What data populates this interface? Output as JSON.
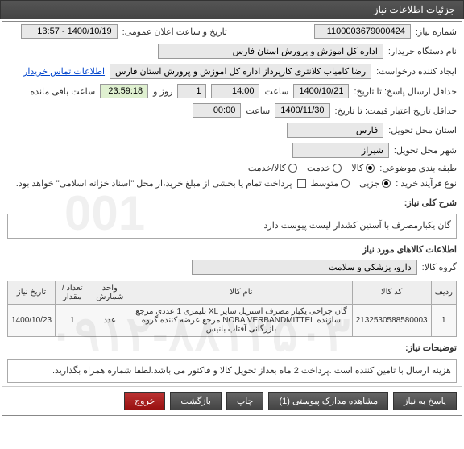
{
  "header": "جزئیات اطلاعات نیاز",
  "labels": {
    "need_no": "شماره نیاز:",
    "announce_dt": "تاریخ و ساعت اعلان عمومی:",
    "buyer_org": "نام دستگاه خریدار:",
    "requester": "ایجاد کننده درخواست:",
    "contact_link": "اطلاعات تماس خریدار",
    "send_deadline": "حداقل ارسال پاسخ: تا تاریخ:",
    "hour": "ساعت",
    "day_and": "روز و",
    "remaining": "ساعت باقی مانده",
    "price_validity": "حداقل تاریخ اعتبار قیمت: تا تاریخ:",
    "delivery_prov": "استان محل تحویل:",
    "delivery_city": "شهر محل تحویل:",
    "category": "طبقه بندی موضوعی:",
    "goods": "کالا",
    "services": "خدمت",
    "goods_services": "کالا/خدمت",
    "purchase_type": "نوع فرآیند خرید :",
    "minor": "جزیی",
    "medium": "متوسط",
    "payment_note": "پرداخت تمام یا بخشی از مبلغ خرید،از محل \"اسناد خزانه اسلامی\" خواهد بود.",
    "need_desc": "شرح کلی نیاز:",
    "items_header": "اطلاعات کالاهای مورد نیاز",
    "goods_group": "گروه کالا:",
    "notes_label": "توضیحات نیاز:",
    "reply": "پاسخ به نیاز",
    "attachments": "مشاهده مدارک پیوستی (1)",
    "print": "چاپ",
    "back": "بازگشت",
    "exit": "خروج"
  },
  "values": {
    "need_no": "1100003679000424",
    "announce_dt": "1400/10/19 - 13:57",
    "buyer_org": "اداره کل اموزش و پرورش استان فارس",
    "requester": "رضا کامیاب کلانتری کارپرداز اداره کل اموزش و پرورش استان فارس",
    "deadline_date": "1400/10/21",
    "deadline_time": "14:00",
    "days_left": "1",
    "time_left": "23:59:18",
    "validity_date": "1400/11/30",
    "validity_time": "00:00",
    "province": "فارس",
    "city": "شیراز",
    "desc": "گان یکبارمصرف با آستین کشدار لیست پیوست دارد",
    "goods_group": "دارو، پزشکی و سلامت",
    "notes": "هزینه ارسال با تامین کننده است .پرداخت 2 ماه بعداز تحویل کالا و فاکتور می باشد.لطفا شماره همراه بگذارید."
  },
  "table": {
    "columns": [
      "ردیف",
      "کد کالا",
      "نام کالا",
      "واحد شمارش",
      "تعداد / مقدار",
      "تاریخ نیاز"
    ],
    "rows": [
      [
        "1",
        "2132530588580003",
        "گان جراحی یکبار مصرف استریل سایز XL پلیمری 1 عددی مرجع سازنده NOBA VERBANDMITTEL مرجع عرضه کننده گروه بازرگانی آفتاب بانیس",
        "عدد",
        "1",
        "1400/10/23"
      ]
    ]
  },
  "watermark1": "001",
  "watermark2": "۰۹۱۲-۸۸۱۳۵۰۳"
}
